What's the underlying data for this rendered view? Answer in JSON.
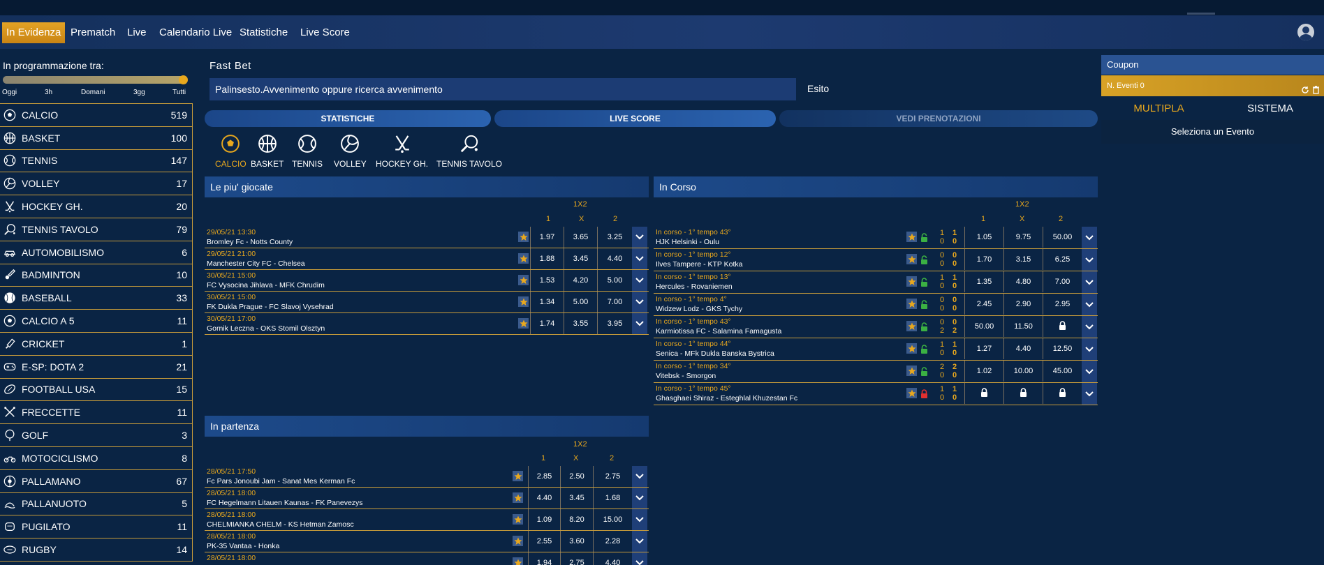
{
  "nav": {
    "items": [
      "In Evidenza",
      "Prematch",
      "Live",
      "Calendario Live",
      "Statistiche",
      "Live Score"
    ],
    "active_index": 0
  },
  "sidebar": {
    "schedule_title": "In programmazione tra:",
    "slider_labels": [
      "Oggi",
      "3h",
      "Domani",
      "3gg",
      "Tutti"
    ],
    "slider_value": "Tutti",
    "sports": [
      {
        "name": "CALCIO",
        "count": "519",
        "icon": "soccer-ball-icon"
      },
      {
        "name": "BASKET",
        "count": "100",
        "icon": "basketball-icon"
      },
      {
        "name": "TENNIS",
        "count": "147",
        "icon": "tennis-ball-icon"
      },
      {
        "name": "VOLLEY",
        "count": "17",
        "icon": "volleyball-icon"
      },
      {
        "name": "HOCKEY GH.",
        "count": "20",
        "icon": "hockey-sticks-icon"
      },
      {
        "name": "TENNIS TAVOLO",
        "count": "79",
        "icon": "table-tennis-icon"
      },
      {
        "name": "AUTOMOBILISMO",
        "count": "6",
        "icon": "car-icon"
      },
      {
        "name": "BADMINTON",
        "count": "10",
        "icon": "shuttlecock-icon"
      },
      {
        "name": "BASEBALL",
        "count": "33",
        "icon": "baseball-icon"
      },
      {
        "name": "CALCIO A 5",
        "count": "11",
        "icon": "soccer-ball-icon"
      },
      {
        "name": "CRICKET",
        "count": "1",
        "icon": "cricket-bat-icon"
      },
      {
        "name": "E-SP: DOTA 2",
        "count": "21",
        "icon": "gamepad-icon"
      },
      {
        "name": "FOOTBALL USA",
        "count": "15",
        "icon": "american-football-icon"
      },
      {
        "name": "FRECCETTE",
        "count": "11",
        "icon": "darts-icon"
      },
      {
        "name": "GOLF",
        "count": "3",
        "icon": "golf-icon"
      },
      {
        "name": "MOTOCICLISMO",
        "count": "8",
        "icon": "motorcycle-icon"
      },
      {
        "name": "PALLAMANO",
        "count": "67",
        "icon": "handball-icon"
      },
      {
        "name": "PALLANUOTO",
        "count": "5",
        "icon": "waterpolo-icon"
      },
      {
        "name": "PUGILATO",
        "count": "11",
        "icon": "boxing-icon"
      },
      {
        "name": "RUGBY",
        "count": "14",
        "icon": "rugby-ball-icon"
      }
    ]
  },
  "fastbet": {
    "label": "Fast Bet",
    "placeholder": "Palinsesto.Avvenimento oppure ricerca avvenimento",
    "esito_label": "Esito"
  },
  "pills": [
    "STATISTICHE",
    "LIVE SCORE",
    "VEDI PRENOTAZIONI"
  ],
  "sport_tabs": [
    {
      "label": "CALCIO",
      "icon": "soccer-ball-icon"
    },
    {
      "label": "BASKET",
      "icon": "basketball-icon"
    },
    {
      "label": "TENNIS",
      "icon": "tennis-ball-icon"
    },
    {
      "label": "VOLLEY",
      "icon": "volleyball-icon"
    },
    {
      "label": "HOCKEY GH.",
      "icon": "hockey-sticks-icon"
    },
    {
      "label": "TENNIS TAVOLO",
      "icon": "table-tennis-icon"
    }
  ],
  "most_played": {
    "title": "Le piu' giocate",
    "market": "1X2",
    "cols": [
      "1",
      "X",
      "2"
    ],
    "rows": [
      {
        "date": "29/05/21 13:30",
        "match": "Bromley Fc - Notts County",
        "odds": [
          "1.97",
          "3.65",
          "3.25"
        ]
      },
      {
        "date": "29/05/21 21:00",
        "match": "Manchester City FC - Chelsea",
        "odds": [
          "1.88",
          "3.45",
          "4.40"
        ]
      },
      {
        "date": "30/05/21 15:00",
        "match": "FC Vysocina Jihlava - MFK Chrudim",
        "odds": [
          "1.53",
          "4.20",
          "5.00"
        ]
      },
      {
        "date": "30/05/21 15:00",
        "match": "FK Dukla Prague - FC Slavoj Vysehrad",
        "odds": [
          "1.34",
          "5.00",
          "7.00"
        ]
      },
      {
        "date": "30/05/21 17:00",
        "match": "Gornik Leczna - OKS Stomil Olsztyn",
        "odds": [
          "1.74",
          "3.55",
          "3.95"
        ]
      }
    ]
  },
  "starting": {
    "title": "In partenza",
    "market": "1X2",
    "cols": [
      "1",
      "X",
      "2"
    ],
    "rows": [
      {
        "date": "28/05/21 17:50",
        "match": "Fc Pars Jonoubi Jam - Sanat Mes Kerman Fc",
        "odds": [
          "2.85",
          "2.50",
          "2.75"
        ]
      },
      {
        "date": "28/05/21 18:00",
        "match": "FC Hegelmann Litauen Kaunas - FK Panevezys",
        "odds": [
          "4.40",
          "3.45",
          "1.68"
        ]
      },
      {
        "date": "28/05/21 18:00",
        "match": "CHELMIANKA CHELM - KS Hetman Zamosc",
        "odds": [
          "1.09",
          "8.20",
          "15.00"
        ]
      },
      {
        "date": "28/05/21 18:00",
        "match": "PK-35 Vantaa - Honka",
        "odds": [
          "2.55",
          "3.60",
          "2.28"
        ]
      },
      {
        "date": "28/05/21 18:00",
        "match": "",
        "odds": [
          "1.94",
          "2.75",
          "4.40"
        ]
      }
    ]
  },
  "live": {
    "title": "In Corso",
    "market": "1X2",
    "cols": [
      "1",
      "X",
      "2"
    ],
    "rows": [
      {
        "status": "In corso - 1° tempo 43°",
        "match": "HJK Helsinki - Oulu",
        "s1": [
          "1",
          "0"
        ],
        "s2": [
          "1",
          "0"
        ],
        "locked": false,
        "odds": [
          "1.05",
          "9.75",
          "50.00"
        ]
      },
      {
        "status": "In corso - 1° tempo 12°",
        "match": "Ilves Tampere - KTP Kotka",
        "s1": [
          "0",
          "0"
        ],
        "s2": [
          "0",
          "0"
        ],
        "locked": false,
        "odds": [
          "1.70",
          "3.15",
          "6.25"
        ]
      },
      {
        "status": "In corso - 1° tempo 13°",
        "match": "Hercules - Rovaniemen",
        "s1": [
          "1",
          "0"
        ],
        "s2": [
          "1",
          "0"
        ],
        "locked": false,
        "odds": [
          "1.35",
          "4.80",
          "7.00"
        ]
      },
      {
        "status": "In corso - 1° tempo 4°",
        "match": "Widzew Lodz - GKS Tychy",
        "s1": [
          "0",
          "0"
        ],
        "s2": [
          "0",
          "0"
        ],
        "locked": false,
        "odds": [
          "2.45",
          "2.90",
          "2.95"
        ]
      },
      {
        "status": "In corso - 1° tempo 43°",
        "match": "Karmiotissa FC - Salamina Famagusta",
        "s1": [
          "0",
          "2"
        ],
        "s2": [
          "0",
          "2"
        ],
        "locked": false,
        "odds": [
          "50.00",
          "11.50",
          "lock"
        ]
      },
      {
        "status": "In corso - 1° tempo 44°",
        "match": "Senica - MFk Dukla Banska Bystrica",
        "s1": [
          "1",
          "0"
        ],
        "s2": [
          "1",
          "0"
        ],
        "locked": false,
        "odds": [
          "1.27",
          "4.40",
          "12.50"
        ]
      },
      {
        "status": "In corso - 1° tempo 34°",
        "match": "Vitebsk - Smorgon",
        "s1": [
          "2",
          "0"
        ],
        "s2": [
          "2",
          "0"
        ],
        "locked": false,
        "odds": [
          "1.02",
          "10.00",
          "45.00"
        ]
      },
      {
        "status": "In corso - 1° tempo 45°",
        "match": "Ghasghaei Shiraz - Esteghlal Khuzestan Fc",
        "s1": [
          "1",
          "0"
        ],
        "s2": [
          "1",
          "0"
        ],
        "locked": true,
        "odds": [
          "lock",
          "lock",
          "lock"
        ]
      }
    ]
  },
  "coupon": {
    "title": "Coupon",
    "events_label": "N. Eventi 0",
    "tab_multipla": "MULTIPLA",
    "tab_sistema": "SISTEMA",
    "empty_text": "Seleziona un Evento"
  },
  "colors": {
    "accent": "#e8a81e",
    "background": "#0a2444",
    "row_border": "#c89c3a",
    "header_blue": "#1d4a8a"
  }
}
